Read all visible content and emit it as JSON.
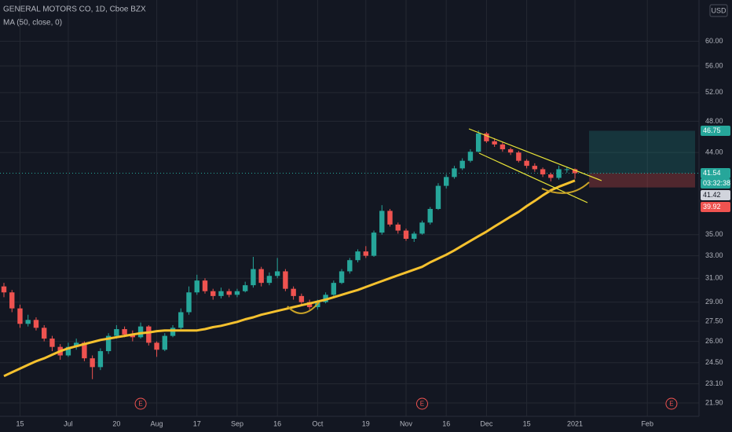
{
  "chart_data": {
    "type": "candlestick",
    "title": "GENERAL MOTORS CO, 1D, Cboe BZX",
    "currency": "USD",
    "categories": [
      null,
      null,
      "15",
      null,
      null,
      null,
      null,
      null,
      "Jul",
      null,
      null,
      null,
      null,
      null,
      "20",
      null,
      null,
      null,
      null,
      "Aug",
      null,
      null,
      null,
      null,
      "17",
      null,
      null,
      null,
      null,
      "Sep",
      null,
      null,
      null,
      null,
      "16",
      null,
      null,
      null,
      null,
      "Oct",
      null,
      null,
      null,
      null,
      null,
      "19",
      null,
      null,
      null,
      null,
      "Nov",
      null,
      null,
      null,
      null,
      "16",
      null,
      null,
      null,
      null,
      "Dec",
      null,
      null,
      null,
      null,
      "15",
      null,
      null,
      null,
      null,
      null,
      "2021",
      null,
      null,
      null,
      null,
      null,
      null,
      null,
      null,
      "Feb",
      null,
      null,
      null,
      null,
      null
    ],
    "open": [
      30.3,
      29.8,
      28.5,
      27.3,
      27.6,
      27.0,
      26.2,
      25.6,
      25.0,
      25.6,
      25.9,
      24.8,
      24.2,
      25.3,
      26.4,
      26.9,
      26.5,
      26.3,
      27.1,
      25.9,
      25.4,
      26.4,
      27.0,
      28.2,
      29.8,
      30.8,
      29.9,
      29.5,
      29.9,
      29.6,
      29.9,
      30.4,
      31.8,
      30.6,
      31.2,
      31.6,
      30.1,
      29.5,
      29.0,
      28.6,
      29.0,
      29.6,
      30.6,
      31.6,
      32.6,
      33.4,
      33.0,
      35.2,
      37.4,
      36.0,
      35.4,
      34.6,
      35.1,
      36.2,
      37.6,
      40.1,
      41.1,
      42.1,
      43.0,
      44.1,
      46.4,
      45.4,
      45.0,
      44.4,
      44.0,
      43.0,
      42.4,
      42.0,
      41.4,
      41.0,
      42.0,
      42.0,
      null,
      null,
      null,
      null,
      null,
      null,
      null,
      null,
      null,
      null,
      null,
      null,
      null,
      null
    ],
    "high": [
      30.6,
      30.0,
      28.8,
      28.0,
      27.8,
      27.2,
      26.4,
      25.8,
      25.9,
      26.2,
      26.0,
      25.0,
      25.5,
      26.6,
      27.2,
      27.1,
      26.8,
      27.4,
      27.2,
      26.0,
      26.6,
      27.2,
      28.5,
      30.3,
      31.3,
      31.0,
      30.1,
      30.2,
      30.1,
      30.1,
      30.7,
      32.9,
      32.0,
      31.5,
      32.8,
      31.8,
      30.3,
      29.7,
      29.2,
      29.2,
      29.8,
      30.8,
      31.8,
      32.8,
      33.6,
      33.9,
      35.4,
      38.0,
      37.6,
      36.2,
      35.6,
      35.3,
      36.4,
      37.8,
      40.4,
      41.4,
      42.4,
      43.3,
      44.4,
      46.8,
      46.6,
      45.8,
      45.3,
      44.6,
      44.2,
      43.2,
      42.7,
      42.2,
      41.6,
      42.4,
      42.3,
      42.1,
      null,
      null,
      null,
      null,
      null,
      null,
      null,
      null,
      null,
      null,
      null,
      null,
      null,
      null
    ],
    "low": [
      29.4,
      28.2,
      27.0,
      27.1,
      26.8,
      26.0,
      25.3,
      24.7,
      24.9,
      25.4,
      24.6,
      23.4,
      24.0,
      25.1,
      26.2,
      26.3,
      26.0,
      26.2,
      25.7,
      24.9,
      25.3,
      26.3,
      26.9,
      28.0,
      29.6,
      29.7,
      29.2,
      29.3,
      29.4,
      29.4,
      29.8,
      30.2,
      30.3,
      30.4,
      31.0,
      29.9,
      29.2,
      28.7,
      28.4,
      28.4,
      28.9,
      29.5,
      30.5,
      31.4,
      32.4,
      32.8,
      32.9,
      35.0,
      35.8,
      35.1,
      34.4,
      34.3,
      35.0,
      36.0,
      37.5,
      39.8,
      40.9,
      41.9,
      42.8,
      44.0,
      45.2,
      44.7,
      44.1,
      43.7,
      42.8,
      42.1,
      41.7,
      41.1,
      40.6,
      40.8,
      41.6,
      40.9,
      null,
      null,
      null,
      null,
      null,
      null,
      null,
      null,
      null,
      null,
      null,
      null,
      null,
      null
    ],
    "close": [
      29.8,
      28.5,
      27.3,
      27.6,
      27.0,
      26.2,
      25.6,
      25.0,
      25.6,
      25.9,
      24.8,
      24.2,
      25.3,
      26.4,
      26.9,
      26.5,
      26.3,
      27.1,
      25.9,
      25.4,
      26.4,
      27.0,
      28.2,
      29.8,
      30.8,
      29.9,
      29.5,
      29.9,
      29.6,
      29.9,
      30.4,
      31.8,
      30.6,
      31.2,
      31.6,
      30.1,
      29.5,
      29.0,
      28.6,
      29.0,
      29.6,
      30.6,
      31.6,
      32.6,
      33.4,
      33.0,
      35.2,
      37.4,
      36.0,
      35.4,
      34.6,
      35.1,
      36.2,
      37.6,
      40.1,
      41.1,
      42.1,
      43.0,
      44.1,
      46.4,
      45.4,
      45.0,
      44.4,
      44.0,
      43.0,
      42.4,
      42.0,
      41.4,
      41.0,
      42.0,
      42.0,
      41.54,
      null,
      null,
      null,
      null,
      null,
      null,
      null,
      null,
      null,
      null,
      null,
      null,
      null,
      null
    ],
    "up_color": "#26a69a",
    "down_color": "#ef5350",
    "overlays": [
      {
        "name": "MA (50, close, 0)",
        "color": "#f5c12e",
        "values": [
          23.6,
          23.85,
          24.1,
          24.35,
          24.6,
          24.8,
          25.05,
          25.3,
          25.5,
          25.65,
          25.8,
          25.95,
          26.1,
          26.2,
          26.3,
          26.4,
          26.5,
          26.6,
          26.65,
          26.75,
          26.8,
          26.8,
          26.8,
          26.8,
          26.8,
          26.9,
          27.05,
          27.15,
          27.3,
          27.45,
          27.65,
          27.8,
          28.0,
          28.15,
          28.3,
          28.45,
          28.6,
          28.75,
          28.9,
          29.05,
          29.2,
          29.4,
          29.6,
          29.8,
          30.0,
          30.25,
          30.5,
          30.75,
          31.0,
          31.25,
          31.5,
          31.75,
          32.0,
          32.4,
          32.75,
          33.1,
          33.5,
          33.95,
          34.4,
          34.85,
          35.3,
          35.8,
          36.3,
          36.8,
          37.3,
          37.9,
          38.45,
          39.05,
          39.6,
          40.0,
          40.35,
          40.7,
          null,
          null,
          null,
          null,
          null,
          null,
          null,
          null,
          null,
          null,
          null,
          null,
          null,
          null
        ]
      }
    ],
    "ylim": [
      21.1,
      67.3
    ],
    "log_scale": true,
    "grid": true,
    "yticks": [
      {
        "value": 60,
        "label": "60.00"
      },
      {
        "value": 56,
        "label": "56.00"
      },
      {
        "value": 52,
        "label": "52.00"
      },
      {
        "value": 48,
        "label": "48.00"
      },
      {
        "value": 44,
        "label": "44.00"
      },
      {
        "value": 35,
        "label": "35.00"
      },
      {
        "value": 33,
        "label": "33.00"
      },
      {
        "value": 31,
        "label": "31.00"
      },
      {
        "value": 29,
        "label": "29.00"
      },
      {
        "value": 27.5,
        "label": "27.50"
      },
      {
        "value": 26,
        "label": "26.00"
      },
      {
        "value": 24.5,
        "label": "24.50"
      },
      {
        "value": 23.1,
        "label": "23.10"
      },
      {
        "value": 21.9,
        "label": "21.90"
      }
    ],
    "position": {
      "target": 46.75,
      "entry": 41.54,
      "stop": 39.92
    },
    "countdown": "03:32:38",
    "price_marker": 41.42,
    "earnings": [
      "E",
      "E",
      "E"
    ]
  }
}
